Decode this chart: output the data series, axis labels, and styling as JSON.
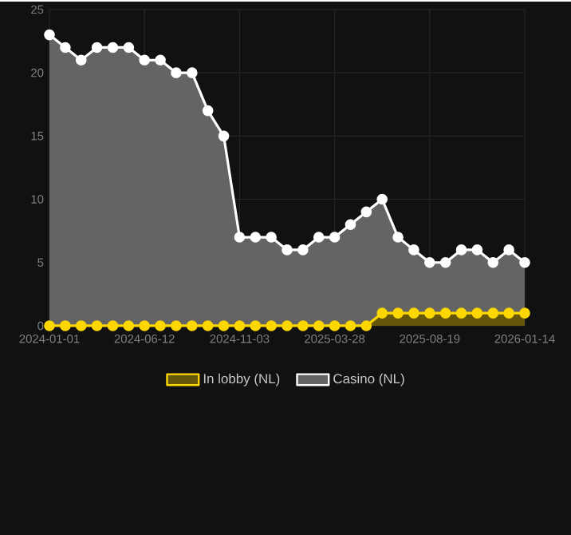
{
  "chart_data": {
    "type": "area",
    "categories": [
      "2024-01-01",
      null,
      null,
      null,
      null,
      null,
      "2024-06-12",
      null,
      null,
      null,
      null,
      null,
      "2024-11-03",
      null,
      null,
      null,
      null,
      null,
      "2025-03-28",
      null,
      null,
      null,
      null,
      null,
      "2025-08-19",
      null,
      null,
      null,
      null,
      null,
      "2026-01-14"
    ],
    "series": [
      {
        "name": "In lobby (NL)",
        "color": "#ffd700",
        "values": [
          0,
          0,
          0,
          0,
          0,
          0,
          0,
          0,
          0,
          0,
          0,
          0,
          0,
          0,
          0,
          0,
          0,
          0,
          0,
          0,
          0,
          1,
          1,
          1,
          1,
          1,
          1,
          1,
          1,
          1,
          1
        ]
      },
      {
        "name": "Casino (NL)",
        "color": "#ffffff",
        "values": [
          23,
          22,
          21,
          22,
          22,
          22,
          21,
          21,
          20,
          20,
          17,
          15,
          7,
          7,
          7,
          6,
          6,
          7,
          7,
          8,
          9,
          10,
          7,
          6,
          5,
          5,
          6,
          6,
          5,
          6,
          5
        ]
      }
    ],
    "ylim": [
      0,
      25
    ],
    "yticks": [
      0,
      5,
      10,
      15,
      20,
      25
    ],
    "grid": true,
    "legend": "bottom",
    "marker": "circle",
    "line_style": "solid"
  }
}
